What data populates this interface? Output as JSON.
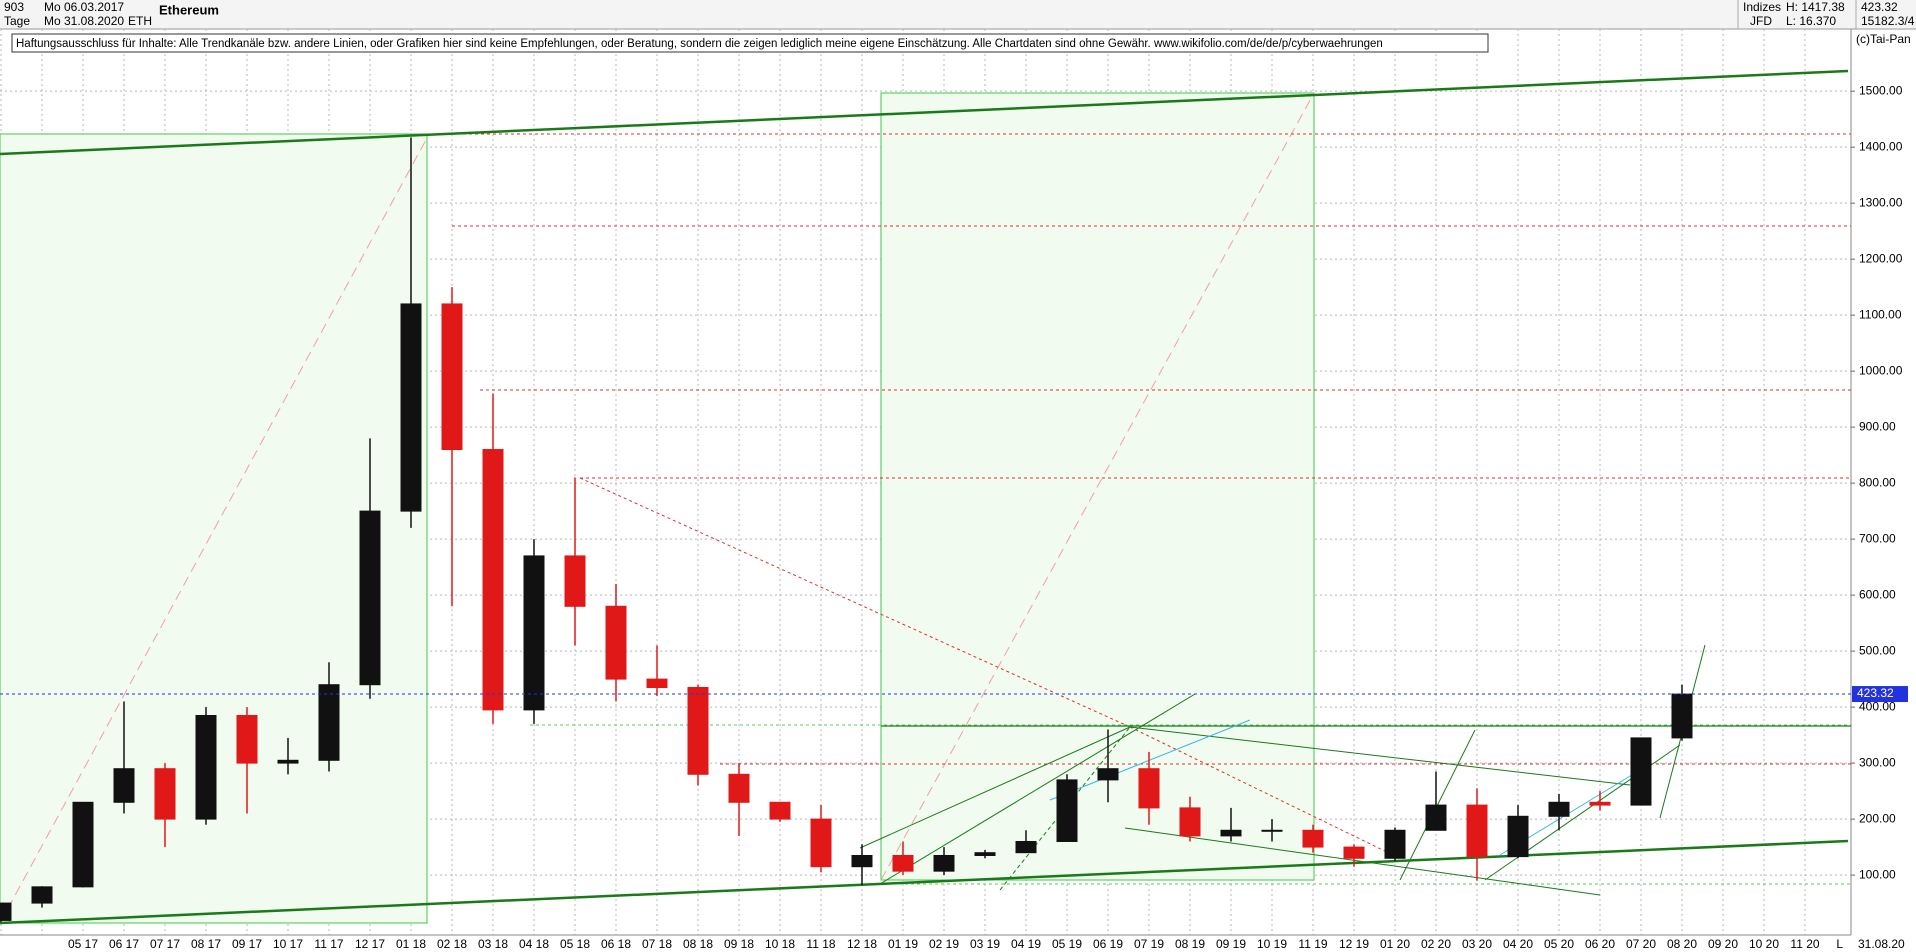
{
  "header": {
    "count": "903",
    "start_date": "Mo 06.03.2017",
    "interval": "Tage",
    "end_date": "Mo 31.08.2020",
    "symbol": "ETH",
    "index_label": "Indizes",
    "broker": "JFD",
    "high_text": "H: 1417.38",
    "low_text": "L: 16.370",
    "last_text": "423.32",
    "extra_text": "15182.3/4",
    "copyright": "(c)Tai-Pan"
  },
  "chart_data": {
    "type": "candlestick",
    "title": "Ethereum",
    "disclaimer": "Haftungsausschluss für Inhalte: Alle Trendkanäle bzw. andere Linien, oder Grafiken hier sind keine Empfehlungen, oder Beratung, sondern die zeigen lediglich meine eigene Einschätzung. Alle Chartdaten sind ohne Gewähr.  www.wikifolio.com/de/de/p/cyberwaehrungen",
    "categories": [
      null,
      null,
      "05 17",
      "06 17",
      "07 17",
      "08 17",
      "09 17",
      "10 17",
      "11 17",
      "12 17",
      "01 18",
      "02 18",
      "03 18",
      "04 18",
      "05 18",
      "06 18",
      "07 18",
      "08 18",
      "09 18",
      "10 18",
      "11 18",
      "12 18",
      "01 19",
      "02 19",
      "03 19",
      "04 19",
      "05 19",
      "06 19",
      "07 19",
      "08 19",
      "09 19",
      "10 19",
      "11 19",
      "12 19",
      "01 20",
      "02 20",
      "03 20",
      "04 20",
      "05 20",
      "06 20",
      "07 20",
      "08 20",
      "09 20",
      "10 20",
      "11 20"
    ],
    "open": [
      19,
      50,
      79,
      230,
      290,
      200,
      385,
      300,
      305,
      440,
      750,
      1120,
      860,
      395,
      670,
      580,
      450,
      435,
      280,
      230,
      200,
      115,
      135,
      107,
      135,
      140,
      160,
      270,
      290,
      220,
      170,
      180,
      180,
      150,
      130,
      180,
      225,
      133,
      205,
      230,
      225,
      345,
      null,
      null,
      null
    ],
    "high": [
      50,
      80,
      230,
      410,
      300,
      400,
      400,
      345,
      480,
      880,
      1417.38,
      1150,
      960,
      700,
      810,
      620,
      510,
      440,
      300,
      230,
      225,
      155,
      160,
      150,
      145,
      180,
      280,
      360,
      320,
      240,
      220,
      200,
      190,
      155,
      185,
      285,
      255,
      225,
      245,
      250,
      345,
      440,
      null,
      null,
      null
    ],
    "low": [
      16.37,
      42,
      78,
      210,
      150,
      190,
      210,
      280,
      285,
      415,
      720,
      580,
      370,
      370,
      510,
      410,
      420,
      260,
      170,
      195,
      105,
      82,
      100,
      100,
      130,
      140,
      160,
      230,
      190,
      160,
      160,
      160,
      140,
      115,
      125,
      180,
      90,
      130,
      180,
      215,
      225,
      340,
      null,
      null,
      null
    ],
    "close": [
      50,
      79,
      230,
      290,
      200,
      385,
      300,
      305,
      440,
      750,
      1120,
      860,
      395,
      670,
      580,
      450,
      435,
      280,
      230,
      200,
      115,
      135,
      107,
      135,
      140,
      160,
      270,
      290,
      220,
      170,
      180,
      180,
      150,
      130,
      180,
      225,
      133,
      205,
      230,
      225,
      345,
      423.32,
      null,
      null,
      null
    ],
    "up_color": "#111111",
    "down_color": "#e01818",
    "last_price": 423.32,
    "last_price_color": "#2233dd",
    "ylim": [
      -7,
      1611
    ],
    "yticks": [
      {
        "value": 100,
        "label": "100.00"
      },
      {
        "value": 200,
        "label": "200.00"
      },
      {
        "value": 300,
        "label": "300.00"
      },
      {
        "value": 400,
        "label": "400.00"
      },
      {
        "value": 500,
        "label": "500.00"
      },
      {
        "value": 600,
        "label": "600.00"
      },
      {
        "value": 700,
        "label": "700.00"
      },
      {
        "value": 800,
        "label": "800.00"
      },
      {
        "value": 900,
        "label": "900.00"
      },
      {
        "value": 1000,
        "label": "1000.00"
      },
      {
        "value": 1100,
        "label": "1100.00"
      },
      {
        "value": 1200,
        "label": "1200.00"
      },
      {
        "value": 1300,
        "label": "1300.00"
      },
      {
        "value": 1400,
        "label": "1400.00"
      },
      {
        "value": 1500,
        "label": "1500.00"
      }
    ],
    "grid": true,
    "axis_end_marker": "L",
    "axis_end_date": "31.08.20"
  }
}
